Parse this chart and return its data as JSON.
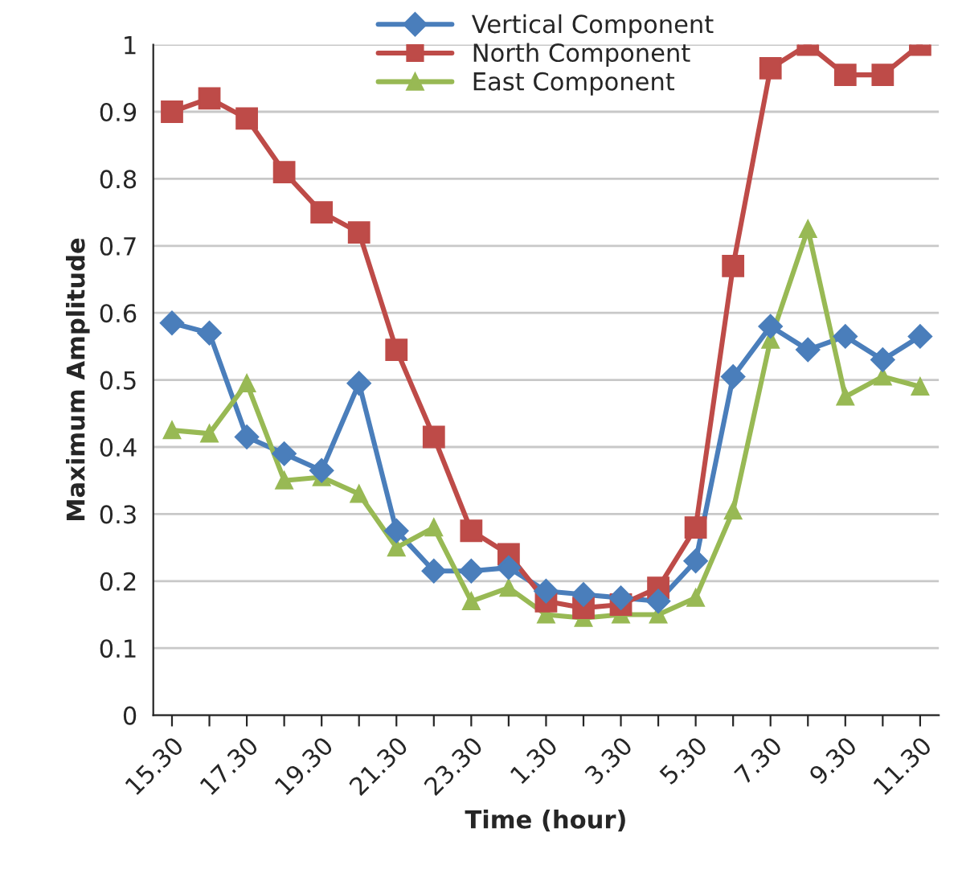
{
  "chart_data": {
    "type": "line",
    "xlabel": "Time (hour)",
    "ylabel": "Maximum Amplitude",
    "categories": [
      "15.30",
      null,
      "17.30",
      null,
      "19.30",
      null,
      "21.30",
      null,
      "23.30",
      null,
      "1.30",
      null,
      "3.30",
      null,
      "5.30",
      null,
      "7.30",
      null,
      "9.30",
      null,
      "11.30"
    ],
    "series": [
      {
        "name": "Vertical Component",
        "color": "#4a7ebb",
        "marker": "diamond",
        "values": [
          0.585,
          0.57,
          0.415,
          0.39,
          0.365,
          0.495,
          0.275,
          0.215,
          0.215,
          0.22,
          0.185,
          0.18,
          0.175,
          0.17,
          0.23,
          0.505,
          0.58,
          0.545,
          0.565,
          0.53,
          0.565
        ]
      },
      {
        "name": "North Component",
        "color": "#be4b48",
        "marker": "square",
        "values": [
          0.9,
          0.92,
          0.89,
          0.81,
          0.75,
          0.72,
          0.545,
          0.415,
          0.275,
          0.24,
          0.17,
          0.16,
          0.165,
          0.19,
          0.28,
          0.67,
          0.965,
          1.0,
          0.955,
          0.955,
          1.0
        ]
      },
      {
        "name": "East Component",
        "color": "#98b954",
        "marker": "triangle",
        "values": [
          0.425,
          0.42,
          0.495,
          0.35,
          0.355,
          0.33,
          0.25,
          0.28,
          0.17,
          0.19,
          0.15,
          0.145,
          0.15,
          0.15,
          0.175,
          0.305,
          0.56,
          0.725,
          0.475,
          0.505,
          0.49
        ]
      }
    ],
    "ylim": [
      0,
      1
    ],
    "yticks": [
      0,
      0.1,
      0.2,
      0.3,
      0.4,
      0.5,
      0.6,
      0.7,
      0.8,
      0.9,
      1
    ],
    "grid": "y",
    "legend": "top"
  }
}
